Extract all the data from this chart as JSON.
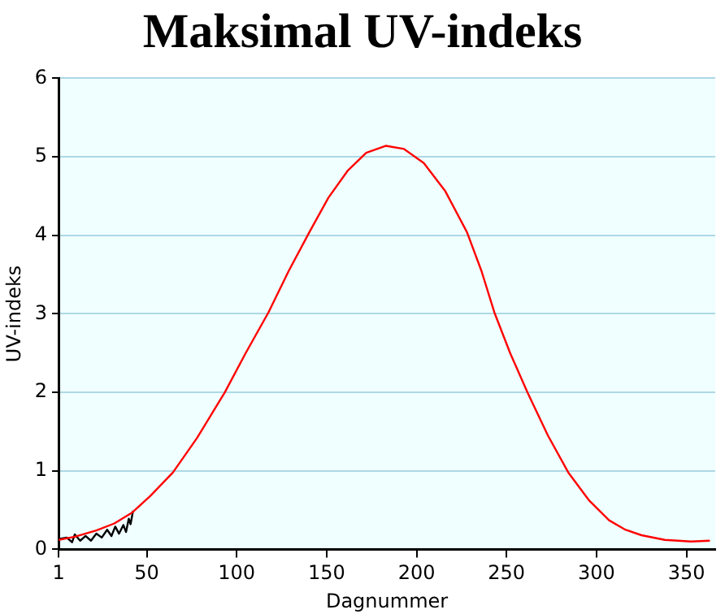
{
  "chart_data": {
    "type": "line",
    "title": "Maksimal UV-indeks",
    "xlabel": "Dagnummer",
    "ylabel": "UV-indeks",
    "xlim": [
      1,
      366
    ],
    "xticks": [
      1,
      50,
      100,
      150,
      200,
      250,
      300,
      350
    ],
    "ylim": [
      0,
      6
    ],
    "yticks": [
      0,
      1,
      2,
      3,
      4,
      5,
      6
    ],
    "grid": "y",
    "marker": "none",
    "series": [
      {
        "color": "#ff0000",
        "x": [
          1,
          10,
          22,
          32,
          42,
          52,
          64.6,
          78,
          93.4,
          105,
          117.7,
          129,
          140.4,
          151,
          161.6,
          172,
          182.8,
          193,
          204,
          216,
          228,
          236,
          243.2,
          252,
          261.6,
          273,
          284.3,
          296,
          307,
          316,
          325,
          338,
          352.5,
          363
        ],
        "values": [
          0.12,
          0.16,
          0.24,
          0.33,
          0.47,
          0.68,
          0.98,
          1.42,
          2.0,
          2.5,
          3.02,
          3.55,
          4.04,
          4.48,
          4.82,
          5.05,
          5.14,
          5.1,
          4.92,
          4.56,
          4.04,
          3.55,
          3.02,
          2.5,
          2.0,
          1.45,
          0.98,
          0.62,
          0.37,
          0.25,
          0.18,
          0.12,
          0.1,
          0.11
        ]
      },
      {
        "color": "#000000",
        "x": [
          1,
          5.5,
          8.5,
          10,
          13,
          16,
          19,
          22,
          25,
          28,
          30.4,
          32.5,
          34.6,
          37,
          38.5,
          40,
          41,
          42.4
        ],
        "values": [
          0.13,
          0.15,
          0.09,
          0.19,
          0.11,
          0.17,
          0.11,
          0.2,
          0.15,
          0.25,
          0.17,
          0.29,
          0.2,
          0.31,
          0.22,
          0.39,
          0.32,
          0.49
        ]
      }
    ]
  }
}
